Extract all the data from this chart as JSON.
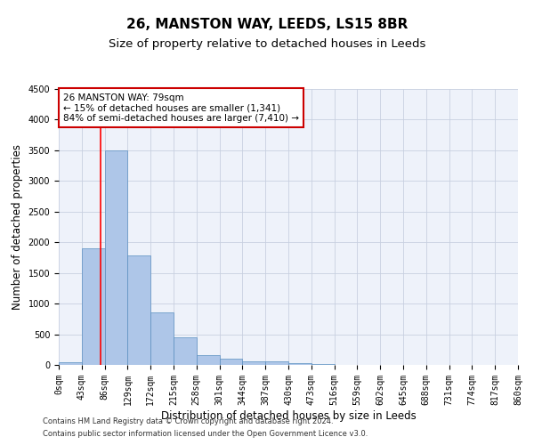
{
  "title": "26, MANSTON WAY, LEEDS, LS15 8BR",
  "subtitle": "Size of property relative to detached houses in Leeds",
  "xlabel": "Distribution of detached houses by size in Leeds",
  "ylabel": "Number of detached properties",
  "bar_values": [
    50,
    1900,
    3500,
    1780,
    850,
    450,
    160,
    100,
    60,
    55,
    35,
    20,
    0,
    0,
    0,
    0,
    0,
    0,
    0,
    0
  ],
  "bin_edges": [
    0,
    43,
    86,
    129,
    172,
    215,
    258,
    301,
    344,
    387,
    430,
    473,
    516,
    559,
    602,
    645,
    688,
    731,
    774,
    817,
    860
  ],
  "tick_labels": [
    "0sqm",
    "43sqm",
    "86sqm",
    "129sqm",
    "172sqm",
    "215sqm",
    "258sqm",
    "301sqm",
    "344sqm",
    "387sqm",
    "430sqm",
    "473sqm",
    "516sqm",
    "559sqm",
    "602sqm",
    "645sqm",
    "688sqm",
    "731sqm",
    "774sqm",
    "817sqm",
    "860sqm"
  ],
  "bar_color": "#aec6e8",
  "bar_edge_color": "#5a8fc0",
  "grid_color": "#c8d0e0",
  "background_color": "#eef2fa",
  "ylim": [
    0,
    4500
  ],
  "yticks": [
    0,
    500,
    1000,
    1500,
    2000,
    2500,
    3000,
    3500,
    4000,
    4500
  ],
  "red_line_x": 79,
  "annotation_text": "26 MANSTON WAY: 79sqm\n← 15% of detached houses are smaller (1,341)\n84% of semi-detached houses are larger (7,410) →",
  "annotation_box_color": "#cc0000",
  "footer_line1": "Contains HM Land Registry data © Crown copyright and database right 2024.",
  "footer_line2": "Contains public sector information licensed under the Open Government Licence v3.0.",
  "title_fontsize": 11,
  "subtitle_fontsize": 9.5,
  "axis_label_fontsize": 8.5,
  "tick_fontsize": 7,
  "annotation_fontsize": 7.5,
  "footer_fontsize": 6
}
